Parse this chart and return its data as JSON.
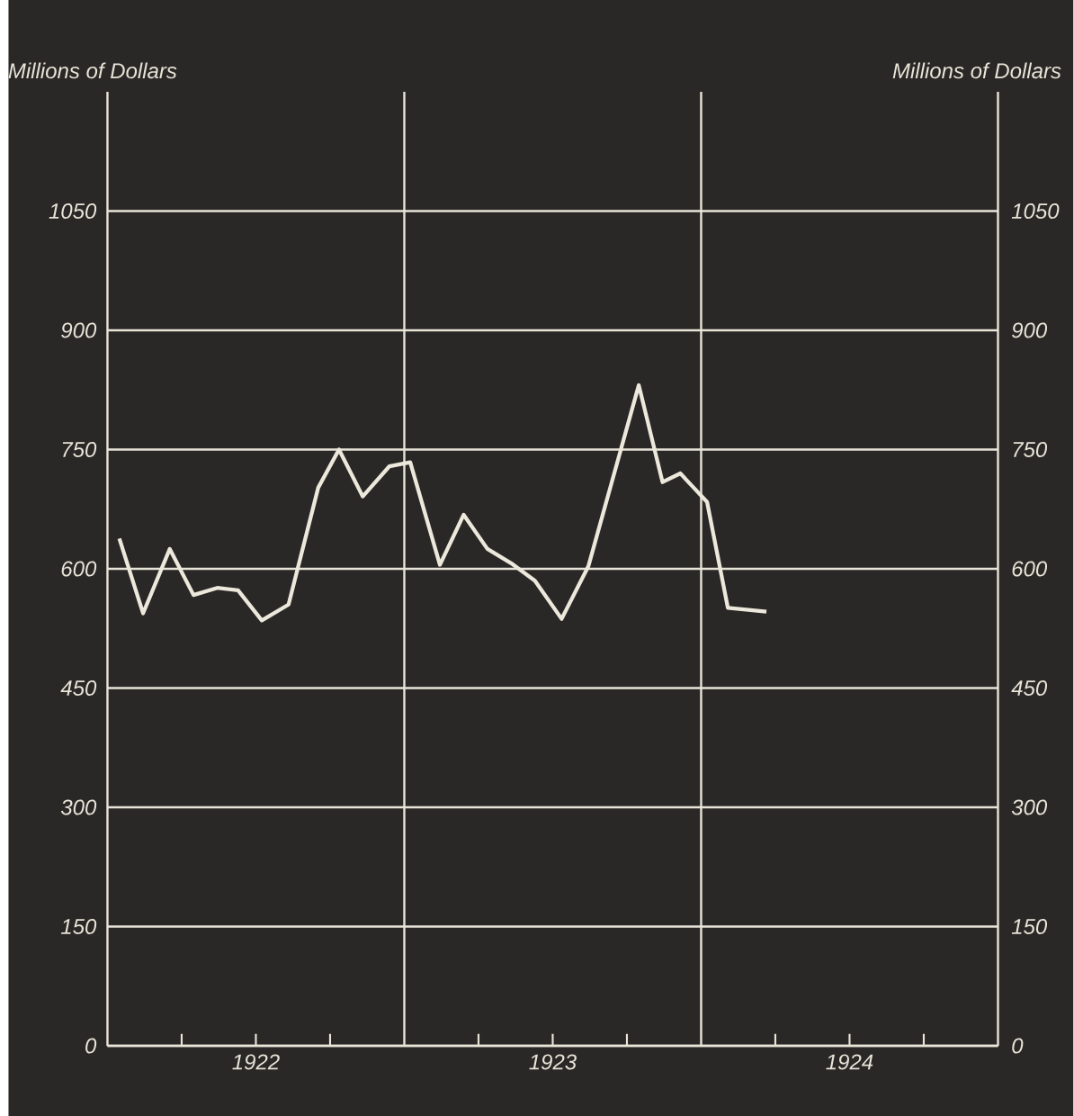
{
  "chart_data": {
    "type": "line",
    "ylabel": "Millions of Dollars",
    "y2label": "Millions of Dollars",
    "xlim": [
      1922,
      1925
    ],
    "ylim": [
      0,
      1200
    ],
    "y2lim": [
      0,
      1200
    ],
    "xticks": [
      {
        "value": 1922.25,
        "label": null
      },
      {
        "value": 1922.5,
        "label": "1922"
      },
      {
        "value": 1922.75,
        "label": null
      },
      {
        "value": 1923.25,
        "label": null
      },
      {
        "value": 1923.5,
        "label": "1923"
      },
      {
        "value": 1923.75,
        "label": null
      },
      {
        "value": 1924.25,
        "label": null
      },
      {
        "value": 1924.5,
        "label": "1924"
      },
      {
        "value": 1924.75,
        "label": null
      }
    ],
    "yticks": [
      0,
      150,
      300,
      450,
      600,
      750,
      900,
      1050
    ],
    "y2ticks": [
      0,
      150,
      300,
      450,
      600,
      750,
      900,
      1050
    ],
    "grid": "y",
    "marker": "none",
    "line_style": "solid",
    "ref_lines": [
      {
        "axis": "x",
        "value": 1923,
        "label": null,
        "color": "#e8e4d8"
      },
      {
        "axis": "x",
        "value": 1924,
        "label": null,
        "color": "#e8e4d8"
      }
    ],
    "series": [
      {
        "color": "#ece8dc",
        "x": [
          1922.04,
          1922.12,
          1922.21,
          1922.29,
          1922.37,
          1922.44,
          1922.52,
          1922.61,
          1922.71,
          1922.78,
          1922.86,
          1922.95,
          1923.02,
          1923.12,
          1923.2,
          1923.28,
          1923.36,
          1923.44,
          1923.53,
          1923.62,
          1923.79,
          1923.87,
          1923.93,
          1923.97,
          1924.02,
          1924.09,
          1924.22
        ],
        "values": [
          638,
          544,
          625,
          567,
          576,
          573,
          535,
          555,
          702,
          750,
          691,
          729,
          734,
          605,
          668,
          625,
          607,
          585,
          537,
          603,
          831,
          709,
          720,
          704,
          684,
          551,
          546
        ]
      }
    ]
  }
}
